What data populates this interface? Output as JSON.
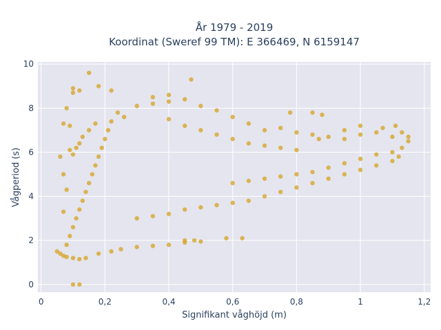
{
  "chart_data": {
    "type": "scatter",
    "title_line1": "År 1979 - 2019",
    "title_line2": "Koordinat (Sweref 99 TM): E 366469, N 6159147",
    "xlabel": "Signifikant våghöjd (m)",
    "ylabel": "Vågperiod (s)",
    "xlim": [
      -0.01,
      1.22
    ],
    "ylim": [
      -0.35,
      10.1
    ],
    "x_ticks": [
      0,
      0.2,
      0.4,
      0.6,
      0.8,
      1,
      1.2
    ],
    "x_tick_labels": [
      "0",
      "0,2",
      "0,4",
      "0,6",
      "0,8",
      "1",
      "1,2"
    ],
    "y_ticks": [
      0,
      2,
      4,
      6,
      8,
      10
    ],
    "y_tick_labels": [
      "0",
      "2",
      "4",
      "6",
      "8",
      "10"
    ],
    "grid": true,
    "marker_color": "#d4a21f",
    "background_color": "#e5e5ef",
    "series": [
      {
        "points": [
          [
            0.05,
            1.5
          ],
          [
            0.06,
            1.4
          ],
          [
            0.07,
            1.3
          ],
          [
            0.08,
            1.25
          ],
          [
            0.1,
            1.2
          ],
          [
            0.12,
            1.15
          ],
          [
            0.14,
            1.2
          ],
          [
            0.18,
            1.4
          ],
          [
            0.22,
            1.5
          ],
          [
            0.25,
            1.6
          ],
          [
            0.3,
            1.7
          ],
          [
            0.35,
            1.75
          ],
          [
            0.4,
            1.8
          ],
          [
            0.45,
            1.9
          ],
          [
            0.5,
            1.95
          ],
          [
            0.08,
            1.8
          ],
          [
            0.09,
            2.2
          ],
          [
            0.1,
            2.6
          ],
          [
            0.11,
            3.0
          ],
          [
            0.12,
            3.4
          ],
          [
            0.13,
            3.8
          ],
          [
            0.14,
            4.2
          ],
          [
            0.15,
            4.6
          ],
          [
            0.16,
            5.0
          ],
          [
            0.17,
            5.4
          ],
          [
            0.18,
            5.8
          ],
          [
            0.19,
            6.2
          ],
          [
            0.2,
            6.6
          ],
          [
            0.21,
            7.0
          ],
          [
            0.22,
            7.4
          ],
          [
            0.24,
            7.8
          ],
          [
            0.26,
            7.6
          ],
          [
            0.1,
            5.9
          ],
          [
            0.11,
            6.2
          ],
          [
            0.12,
            6.4
          ],
          [
            0.13,
            6.7
          ],
          [
            0.15,
            7.0
          ],
          [
            0.17,
            7.3
          ],
          [
            0.09,
            6.1
          ],
          [
            0.3,
            8.1
          ],
          [
            0.35,
            8.2
          ],
          [
            0.4,
            8.3
          ],
          [
            0.45,
            8.4
          ],
          [
            0.5,
            8.1
          ],
          [
            0.55,
            7.9
          ],
          [
            0.6,
            7.6
          ],
          [
            0.65,
            7.3
          ],
          [
            0.7,
            7.0
          ],
          [
            0.75,
            7.1
          ],
          [
            0.8,
            6.9
          ],
          [
            0.85,
            6.8
          ],
          [
            0.9,
            6.7
          ],
          [
            0.95,
            6.6
          ],
          [
            1.0,
            6.8
          ],
          [
            1.05,
            6.9
          ],
          [
            1.1,
            6.7
          ],
          [
            1.15,
            6.5
          ],
          [
            0.4,
            7.5
          ],
          [
            0.45,
            7.2
          ],
          [
            0.5,
            7.0
          ],
          [
            0.55,
            6.8
          ],
          [
            0.6,
            6.6
          ],
          [
            0.65,
            6.4
          ],
          [
            0.7,
            6.3
          ],
          [
            0.75,
            6.2
          ],
          [
            0.8,
            6.1
          ],
          [
            0.3,
            3.0
          ],
          [
            0.35,
            3.1
          ],
          [
            0.4,
            3.2
          ],
          [
            0.45,
            3.4
          ],
          [
            0.5,
            3.5
          ],
          [
            0.55,
            3.6
          ],
          [
            0.6,
            3.7
          ],
          [
            0.65,
            3.8
          ],
          [
            0.7,
            4.0
          ],
          [
            0.75,
            4.2
          ],
          [
            0.8,
            4.4
          ],
          [
            0.85,
            4.6
          ],
          [
            0.9,
            4.8
          ],
          [
            0.95,
            5.0
          ],
          [
            1.0,
            5.2
          ],
          [
            1.05,
            5.4
          ],
          [
            1.1,
            5.6
          ],
          [
            1.12,
            5.8
          ],
          [
            0.6,
            4.6
          ],
          [
            0.65,
            4.7
          ],
          [
            0.7,
            4.8
          ],
          [
            0.75,
            4.9
          ],
          [
            0.8,
            5.0
          ],
          [
            0.85,
            5.1
          ],
          [
            0.9,
            5.3
          ],
          [
            0.95,
            5.5
          ],
          [
            1.0,
            5.7
          ],
          [
            1.05,
            5.9
          ],
          [
            1.1,
            6.0
          ],
          [
            1.13,
            6.2
          ],
          [
            0.15,
            9.6
          ],
          [
            0.1,
            8.9
          ],
          [
            0.1,
            8.7
          ],
          [
            0.12,
            8.8
          ],
          [
            0.18,
            9.0
          ],
          [
            0.22,
            8.8
          ],
          [
            0.47,
            9.3
          ],
          [
            0.4,
            8.6
          ],
          [
            0.35,
            8.5
          ],
          [
            0.07,
            7.3
          ],
          [
            0.08,
            8.0
          ],
          [
            0.09,
            7.2
          ],
          [
            0.06,
            5.8
          ],
          [
            0.07,
            5.0
          ],
          [
            0.08,
            4.3
          ],
          [
            0.07,
            3.3
          ],
          [
            0.1,
            0.0
          ],
          [
            0.12,
            0.0
          ],
          [
            0.58,
            2.1
          ],
          [
            0.63,
            2.1
          ],
          [
            0.48,
            2.0
          ],
          [
            0.45,
            2.0
          ],
          [
            0.78,
            7.8
          ],
          [
            0.85,
            7.8
          ],
          [
            0.88,
            7.7
          ],
          [
            1.0,
            7.2
          ],
          [
            1.07,
            7.1
          ],
          [
            1.11,
            7.2
          ],
          [
            1.13,
            6.9
          ],
          [
            1.15,
            6.7
          ],
          [
            0.95,
            7.0
          ],
          [
            0.87,
            6.6
          ]
        ]
      }
    ]
  }
}
